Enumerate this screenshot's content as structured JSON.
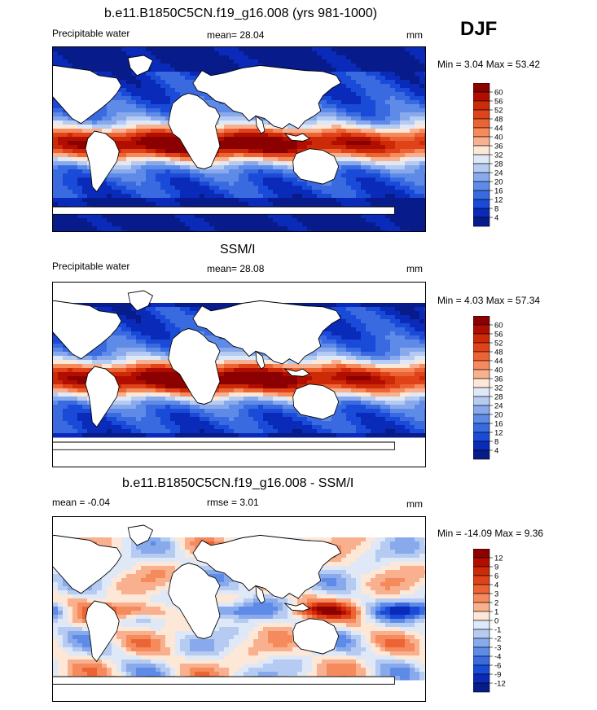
{
  "season": "DJF",
  "chart_data": [
    {
      "type": "heatmap",
      "title": "b.e11.B1850C5CN.f19_g16.008 (yrs 981-1000)",
      "left_label": "Precipitable water",
      "mean_text": "mean=  28.04",
      "units": "mm",
      "minmax_text": "Min =   3.04 Max =  53.42",
      "min": 3.04,
      "max": 53.42,
      "mean": 28.04,
      "colorbar_levels": [
        "60",
        "56",
        "52",
        "48",
        "44",
        "40",
        "36",
        "32",
        "28",
        "24",
        "20",
        "16",
        "12",
        "8",
        "4"
      ],
      "colorbar_colors": [
        "#8b0000",
        "#b10e00",
        "#cd2a08",
        "#e0431a",
        "#ec6434",
        "#f58a5c",
        "#f9b08e",
        "#fde7d7",
        "#dfe8f7",
        "#b5cbf1",
        "#88aaec",
        "#5f8be8",
        "#3a6ae0",
        "#1a4bd8",
        "#0a2ab9",
        "#081b8a"
      ]
    },
    {
      "type": "heatmap",
      "title": "SSM/I",
      "left_label": "Precipitable water",
      "mean_text": "mean=  28.08",
      "units": "mm",
      "minmax_text": "Min =   4.03 Max =  57.34",
      "min": 4.03,
      "max": 57.34,
      "mean": 28.08,
      "colorbar_levels": [
        "60",
        "56",
        "52",
        "48",
        "44",
        "40",
        "36",
        "32",
        "28",
        "24",
        "20",
        "16",
        "12",
        "8",
        "4"
      ],
      "colorbar_colors": [
        "#8b0000",
        "#b10e00",
        "#cd2a08",
        "#e0431a",
        "#ec6434",
        "#f58a5c",
        "#f9b08e",
        "#fde7d7",
        "#dfe8f7",
        "#b5cbf1",
        "#88aaec",
        "#5f8be8",
        "#3a6ae0",
        "#1a4bd8",
        "#0a2ab9",
        "#081b8a"
      ]
    },
    {
      "type": "heatmap",
      "title": "b.e11.B1850C5CN.f19_g16.008 - SSM/I",
      "left_label": "mean =  -0.04",
      "mean_text": "rmse =   3.01",
      "units": "mm",
      "minmax_text": "Min = -14.09 Max =   9.36",
      "min": -14.09,
      "max": 9.36,
      "mean": -0.04,
      "rmse": 3.01,
      "colorbar_levels": [
        "12",
        "9",
        "6",
        "4",
        "3",
        "2",
        "1",
        "0",
        "-1",
        "-2",
        "-3",
        "-4",
        "-6",
        "-9",
        "-12"
      ],
      "colorbar_colors": [
        "#8b0000",
        "#b10e00",
        "#cd2a08",
        "#e0431a",
        "#ec6434",
        "#f58a5c",
        "#f9b08e",
        "#fde7d7",
        "#dfe8f7",
        "#b5cbf1",
        "#88aaec",
        "#5f8be8",
        "#3a6ae0",
        "#1a4bd8",
        "#0a2ab9",
        "#081b8a"
      ]
    }
  ]
}
